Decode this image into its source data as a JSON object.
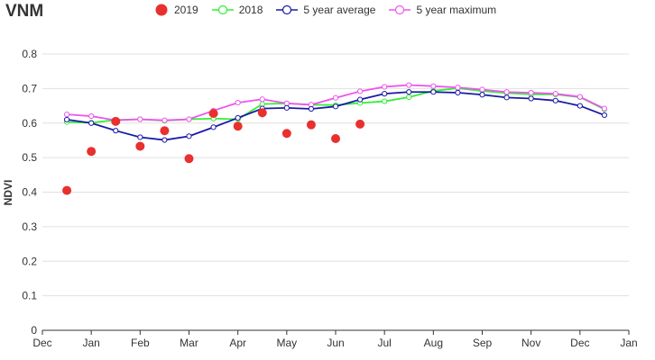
{
  "chart_data": {
    "type": "line",
    "title": "VNM",
    "ylabel": "NDVI",
    "xlabel": "",
    "ylim": [
      0,
      0.8
    ],
    "yticks": [
      0,
      0.1,
      0.2,
      0.3,
      0.4,
      0.5,
      0.6,
      0.7,
      0.8
    ],
    "ytick_labels": [
      "0",
      "0.1",
      "0.2",
      "0.3",
      "0.4",
      "0.5",
      "0.6",
      "0.7",
      "0.8"
    ],
    "xlim": [
      0,
      12
    ],
    "xticks": [
      0,
      1,
      2,
      3,
      4,
      5,
      6,
      7,
      8,
      9,
      10,
      11,
      12
    ],
    "xtick_labels": [
      "Dec",
      "Jan",
      "Feb",
      "Mar",
      "Apr",
      "May",
      "Jun",
      "Jul",
      "Aug",
      "Sep",
      "Nov",
      "Dec",
      "Jan"
    ],
    "grid": true,
    "legend_position": "top",
    "x": [
      0.5,
      1.0,
      1.5,
      2.0,
      2.5,
      3.0,
      3.5,
      4.0,
      4.5,
      5.0,
      5.5,
      6.0,
      6.5,
      7.0,
      7.5,
      8.0,
      8.5,
      9.0,
      9.5,
      10.0,
      10.5,
      11.0,
      11.5
    ],
    "series": [
      {
        "name": "2019",
        "style": "dot",
        "color": "#e8302f",
        "values": [
          0.405,
          0.518,
          0.605,
          0.533,
          0.578,
          0.497,
          0.628,
          0.591,
          0.63,
          0.57,
          0.595,
          0.555,
          0.597,
          null,
          null,
          null,
          null,
          null,
          null,
          null,
          null,
          null,
          null
        ]
      },
      {
        "name": "2018",
        "style": "line",
        "color": "#33ee33",
        "values": [
          0.603,
          0.601,
          0.609,
          0.611,
          0.607,
          0.611,
          0.613,
          0.611,
          0.655,
          0.657,
          0.653,
          0.652,
          0.658,
          0.663,
          0.675,
          0.693,
          0.701,
          0.693,
          0.687,
          0.683,
          0.683,
          0.675,
          0.64
        ]
      },
      {
        "name": "5 year average",
        "style": "line",
        "color": "#1a1aa6",
        "values": [
          0.61,
          0.6,
          0.578,
          0.559,
          0.551,
          0.562,
          0.588,
          0.615,
          0.642,
          0.644,
          0.641,
          0.648,
          0.668,
          0.685,
          0.69,
          0.69,
          0.688,
          0.682,
          0.674,
          0.671,
          0.665,
          0.65,
          0.623
        ]
      },
      {
        "name": "5 year maximum",
        "style": "line",
        "color": "#ee55ee",
        "values": [
          0.625,
          0.62,
          0.608,
          0.611,
          0.608,
          0.611,
          0.636,
          0.659,
          0.669,
          0.657,
          0.653,
          0.673,
          0.692,
          0.705,
          0.71,
          0.707,
          0.703,
          0.697,
          0.69,
          0.688,
          0.685,
          0.676,
          0.642
        ]
      }
    ]
  }
}
